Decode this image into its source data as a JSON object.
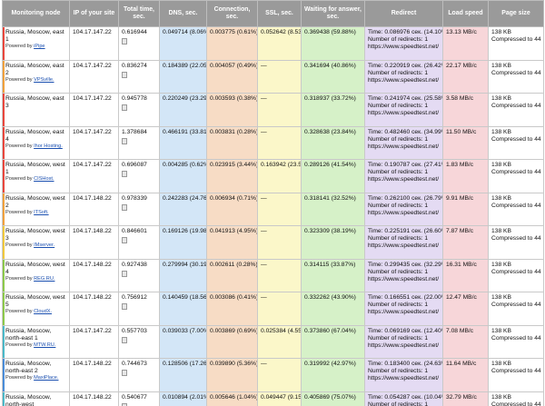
{
  "columns": {
    "node": "Monitoring node",
    "ip": "IP of your site",
    "total": "Total time, sec.",
    "dns": "DNS, sec.",
    "connection": "Connection, sec.",
    "ssl": "SSL, sec.",
    "waiting": "Waiting for answer, sec.",
    "redirect": "Redirect",
    "speed": "Load speed",
    "size": "Page size"
  },
  "colors": {
    "header": "#9a9a9a",
    "dns": "#d3e6f7",
    "connection": "#f7dcc5",
    "ssl": "#fbf7c9",
    "waiting": "#d6f1c8",
    "redirect": "#e4dbf3",
    "speed": "#f7d6d9"
  },
  "rows": [
    {
      "stripe": "#e8463c",
      "node": "Russia, Moscow, east 1",
      "powered_prefix": "Powered by",
      "powered_by": "iPipe",
      "ip": "104.17.147.22",
      "total": "0.616944",
      "dns": "0.049714 (8.06%)",
      "connection": "0.003775 (0.61%)",
      "ssl": "0.052642 (8.53%)",
      "waiting": "0.369438 (59.88%)",
      "redirect_time": "Time: 0.086976 сек. (14.10%)",
      "redirect_count": "Number of redirects: 1",
      "redirect_url": "https://www.speedtest.net/",
      "speed": "13.13 MB/c",
      "size_kb": "138 KB",
      "size_compressed": "Compressed to 44 KB (67%)"
    },
    {
      "stripe": "#f0a03c",
      "node": "Russia, Moscow, east 2",
      "powered_prefix": "Powered by",
      "powered_by": "VPSville.",
      "ip": "104.17.147.22",
      "total": "0.836274",
      "dns": "0.184389 (22.05%)",
      "connection": "0.004057 (0.49%)",
      "ssl": "—",
      "waiting": "0.341694 (40.86%)",
      "redirect_time": "Time: 0.220919 сек. (26.42%)",
      "redirect_count": "Number of redirects: 1",
      "redirect_url": "https://www.speedtest.net/",
      "speed": "22.17 MB/c",
      "size_kb": "138 KB",
      "size_compressed": "Compressed to 44 KB (67%)"
    },
    {
      "stripe": "#e8463c",
      "node": "Russia, Moscow, east 3",
      "powered_prefix": "",
      "powered_by": "",
      "ip": "104.17.147.22",
      "total": "0.945778",
      "dns": "0.220249 (23.29%)",
      "connection": "0.003593 (0.38%)",
      "ssl": "—",
      "waiting": "0.318937 (33.72%)",
      "redirect_time": "Time: 0.241974 сек. (25.58%)",
      "redirect_count": "Number of redirects: 1",
      "redirect_url": "https://www.speedtest.net/",
      "speed": "3.58 MB/c",
      "size_kb": "138 KB",
      "size_compressed": "Compressed to 44 KB (67%)"
    },
    {
      "stripe": "#e8463c",
      "node": "Russia, Moscow, east 4",
      "powered_prefix": "Powered by",
      "powered_by": "Ihor Hosting.",
      "ip": "104.17.147.22",
      "total": "1.378684",
      "dns": "0.466191 (33.81%)",
      "connection": "0.003831 (0.28%)",
      "ssl": "—",
      "waiting": "0.328638 (23.84%)",
      "redirect_time": "Time: 0.482460 сек. (34.99%)",
      "redirect_count": "Number of redirects: 1",
      "redirect_url": "https://www.speedtest.net/",
      "speed": "11.50 MB/c",
      "size_kb": "138 KB",
      "size_compressed": "Compressed to 44 KB (67%)"
    },
    {
      "stripe": "#e8463c",
      "node": "Russia, Moscow, west 1",
      "powered_prefix": "Powered by",
      "powered_by": "CISHost.",
      "ip": "104.17.147.22",
      "total": "0.696087",
      "dns": "0.004285 (0.62%)",
      "connection": "0.023915 (3.44%)",
      "ssl": "0.163942 (23.55%)",
      "waiting": "0.289126 (41.54%)",
      "redirect_time": "Time: 0.190787 сек. (27.41%)",
      "redirect_count": "Number of redirects: 1",
      "redirect_url": "https://www.speedtest.net/",
      "speed": "1.83 MB/c",
      "size_kb": "138 KB",
      "size_compressed": "Compressed to 44 KB (67%)"
    },
    {
      "stripe": "#f0a03c",
      "node": "Russia, Moscow, west 2",
      "powered_prefix": "Powered by",
      "powered_by": "ITSoft.",
      "ip": "104.17.148.22",
      "total": "0.978339",
      "dns": "0.242283 (24.76%)",
      "connection": "0.006934 (0.71%)",
      "ssl": "—",
      "waiting": "0.318141 (32.52%)",
      "redirect_time": "Time: 0.262100 сек. (26.79%)",
      "redirect_count": "Number of redirects: 1",
      "redirect_url": "https://www.speedtest.net/",
      "speed": "9.91 MB/c",
      "size_kb": "138 KB",
      "size_compressed": "Compressed to 44 KB (67%)"
    },
    {
      "stripe": "#f0c83c",
      "node": "Russia, Moscow, west 3",
      "powered_prefix": "Powered by",
      "powered_by": "IMserver.",
      "ip": "104.17.148.22",
      "total": "0.846601",
      "dns": "0.169126 (19.98%)",
      "connection": "0.041913 (4.95%)",
      "ssl": "—",
      "waiting": "0.323309 (38.19%)",
      "redirect_time": "Time: 0.225191 сек. (26.60%)",
      "redirect_count": "Number of redirects: 1",
      "redirect_url": "https://www.speedtest.net/",
      "speed": "7.87 MB/c",
      "size_kb": "138 KB",
      "size_compressed": "Compressed to 44 KB (67%)"
    },
    {
      "stripe": "#8cc84a",
      "node": "Russia, Moscow, west 4",
      "powered_prefix": "Powered by",
      "powered_by": "REG.RU.",
      "ip": "104.17.148.22",
      "total": "0.927438",
      "dns": "0.279994 (30.19%)",
      "connection": "0.002611 (0.28%)",
      "ssl": "—",
      "waiting": "0.314115 (33.87%)",
      "redirect_time": "Time: 0.299435 сек. (32.29%)",
      "redirect_count": "Number of redirects: 1",
      "redirect_url": "https://www.speedtest.net/",
      "speed": "16.31 MB/c",
      "size_kb": "138 KB",
      "size_compressed": "Compressed to 44 KB (67%)"
    },
    {
      "stripe": "#8cc84a",
      "node": "Russia, Moscow, west 5",
      "powered_prefix": "Powered by",
      "powered_by": "CloudX.",
      "ip": "104.17.148.22",
      "total": "0.756912",
      "dns": "0.140459 (18.56%)",
      "connection": "0.003086 (0.41%)",
      "ssl": "—",
      "waiting": "0.332262 (43.90%)",
      "redirect_time": "Time: 0.166551 сек. (22.00%)",
      "redirect_count": "Number of redirects: 1",
      "redirect_url": "https://www.speedtest.net/",
      "speed": "12.47 MB/c",
      "size_kb": "138 KB",
      "size_compressed": "Compressed to 44 KB (67%)"
    },
    {
      "stripe": "#4ab8c8",
      "node": "Russia, Moscow, north-east 1",
      "powered_prefix": "Powered by",
      "powered_by": "MTW.RU.",
      "ip": "104.17.147.22",
      "total": "0.557703",
      "dns": "0.039033 (7.00%)",
      "connection": "0.003869 (0.69%)",
      "ssl": "0.025384 (4.55%)",
      "waiting": "0.373860 (67.04%)",
      "redirect_time": "Time: 0.069169 сек. (12.40%)",
      "redirect_count": "Number of redirects: 1",
      "redirect_url": "https://www.speedtest.net/",
      "speed": "7.08 MB/c",
      "size_kb": "138 KB",
      "size_compressed": "Compressed to 44 KB (67%)"
    },
    {
      "stripe": "#4a8cd8",
      "node": "Russia, Moscow, north-east 2",
      "powered_prefix": "Powered by",
      "powered_by": "MaxiPlace.",
      "ip": "104.17.148.22",
      "total": "0.744673",
      "dns": "0.128506 (17.26%)",
      "connection": "0.039890 (5.36%)",
      "ssl": "—",
      "waiting": "0.319992 (42.97%)",
      "redirect_time": "Time: 0.183400 сек. (24.63%)",
      "redirect_count": "Number of redirects: 1",
      "redirect_url": "https://www.speedtest.net/",
      "speed": "11.64 MB/c",
      "size_kb": "138 KB",
      "size_compressed": "Compressed to 44 KB (67%)"
    },
    {
      "stripe": "#4ab8c8",
      "node": "Russia, Moscow, north-west",
      "powered_prefix": "Powered by",
      "powered_by": "Cloud4Y.",
      "ip": "104.17.148.22",
      "total": "0.540677",
      "dns": "0.010894 (2.01%)",
      "connection": "0.005646 (1.04%)",
      "ssl": "0.049447 (9.15%)",
      "waiting": "0.405869 (75.07%)",
      "redirect_time": "Time: 0.054287 сек. (10.04%)",
      "redirect_count": "Number of redirects: 1",
      "redirect_url": "https://www.speedtest.net/",
      "speed": "32.79 MB/c",
      "size_kb": "138 KB",
      "size_compressed": "Compressed to 44 KB (67%)"
    }
  ]
}
